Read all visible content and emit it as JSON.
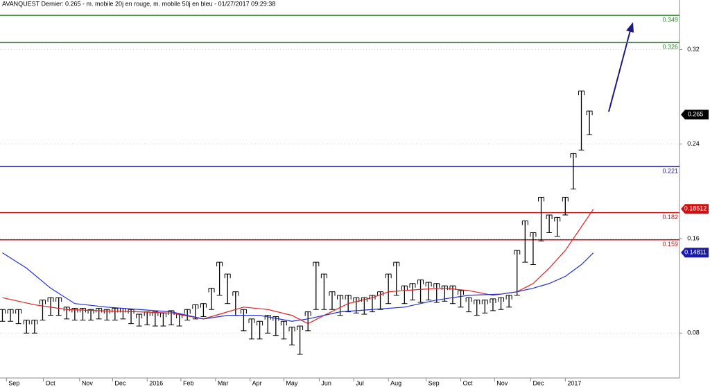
{
  "chart_data": {
    "type": "stock",
    "title": "AVANQUEST Dernier: 0.265 - m. mobile 20j en rouge, m. mobile 50j en bleu - 01/27/2017 09:29:38",
    "ylim": [
      0.042,
      0.362
    ],
    "yticks": [
      0.32,
      0.24,
      0.16,
      0.08
    ],
    "xlim": [
      -0.3,
      84.2
    ],
    "xticks": [
      {
        "value": 0.5,
        "label": "Sep"
      },
      {
        "value": 5.1,
        "label": "Oct"
      },
      {
        "value": 9.6,
        "label": "Nov"
      },
      {
        "value": 13.7,
        "label": "Dec"
      },
      {
        "value": 18,
        "label": "2016"
      },
      {
        "value": 22.2,
        "label": "Feb"
      },
      {
        "value": 26.5,
        "label": "Mar"
      },
      {
        "value": 30.8,
        "label": "Apr"
      },
      {
        "value": 35,
        "label": "May"
      },
      {
        "value": 39.4,
        "label": "Jun"
      },
      {
        "value": 43.7,
        "label": "Jul"
      },
      {
        "value": 48,
        "label": "Aug"
      },
      {
        "value": 52.7,
        "label": "Sep"
      },
      {
        "value": 57,
        "label": "Oct"
      },
      {
        "value": 61.2,
        "label": "Nov"
      },
      {
        "value": 65.7,
        "label": "Dec"
      },
      {
        "value": 70,
        "label": "2017"
      }
    ],
    "bars": {
      "color": "#000000",
      "x": [
        0,
        1,
        2,
        3,
        4,
        5,
        6,
        7,
        8,
        9,
        10,
        11,
        12,
        13,
        14,
        15,
        16,
        17,
        18,
        19,
        20,
        21,
        22,
        23,
        24,
        25,
        26,
        27,
        28,
        29,
        30,
        31,
        32,
        33,
        34,
        35,
        36,
        37,
        38,
        39,
        40,
        41,
        42,
        43,
        44,
        45,
        46,
        47,
        48,
        49,
        50,
        51,
        52,
        53,
        54,
        55,
        56,
        57,
        58,
        59,
        60,
        61,
        62,
        63,
        64,
        65,
        66,
        67,
        68,
        69,
        70,
        71,
        72,
        73
      ],
      "low": [
        0.09,
        0.09,
        0.088,
        0.08,
        0.08,
        0.091,
        0.095,
        0.095,
        0.092,
        0.091,
        0.091,
        0.091,
        0.092,
        0.091,
        0.091,
        0.092,
        0.088,
        0.086,
        0.087,
        0.086,
        0.086,
        0.087,
        0.086,
        0.091,
        0.092,
        0.094,
        0.1,
        0.112,
        0.105,
        0.095,
        0.082,
        0.075,
        0.075,
        0.08,
        0.078,
        0.075,
        0.07,
        0.062,
        0.082,
        0.1,
        0.1,
        0.1,
        0.095,
        0.098,
        0.097,
        0.096,
        0.098,
        0.1,
        0.105,
        0.112,
        0.105,
        0.108,
        0.106,
        0.108,
        0.106,
        0.107,
        0.105,
        0.102,
        0.098,
        0.095,
        0.097,
        0.099,
        0.1,
        0.102,
        0.112,
        0.14,
        0.138,
        0.158,
        0.165,
        0.162,
        0.18,
        0.202,
        0.235,
        0.248
      ],
      "high": [
        0.1,
        0.1,
        0.1,
        0.091,
        0.091,
        0.108,
        0.11,
        0.11,
        0.102,
        0.101,
        0.101,
        0.1,
        0.101,
        0.1,
        0.101,
        0.101,
        0.1,
        0.096,
        0.098,
        0.098,
        0.097,
        0.099,
        0.096,
        0.1,
        0.104,
        0.105,
        0.118,
        0.14,
        0.13,
        0.115,
        0.1,
        0.092,
        0.09,
        0.095,
        0.094,
        0.09,
        0.085,
        0.086,
        0.098,
        0.14,
        0.13,
        0.115,
        0.112,
        0.112,
        0.11,
        0.11,
        0.112,
        0.115,
        0.13,
        0.14,
        0.12,
        0.122,
        0.125,
        0.123,
        0.122,
        0.12,
        0.12,
        0.116,
        0.11,
        0.108,
        0.108,
        0.109,
        0.11,
        0.112,
        0.15,
        0.175,
        0.165,
        0.195,
        0.18,
        0.178,
        0.195,
        0.232,
        0.285,
        0.268
      ]
    },
    "moving_averages": [
      {
        "color": "#e02020",
        "x": [
          0,
          4,
          8,
          12,
          17,
          21,
          25,
          28,
          30,
          33,
          36,
          38,
          40,
          43,
          46,
          48,
          52,
          55,
          58,
          61,
          64,
          66,
          68,
          70,
          72,
          73.5
        ],
        "values": [
          0.11,
          0.104,
          0.1,
          0.099,
          0.098,
          0.097,
          0.092,
          0.098,
          0.102,
          0.1,
          0.095,
          0.088,
          0.095,
          0.105,
          0.11,
          0.115,
          0.117,
          0.118,
          0.116,
          0.112,
          0.115,
          0.122,
          0.135,
          0.15,
          0.17,
          0.185
        ]
      },
      {
        "color": "#2030d0",
        "x": [
          0,
          3,
          6,
          9,
          13,
          17,
          21,
          25,
          28,
          32,
          36,
          38,
          42,
          46,
          50,
          54,
          58,
          62,
          64,
          66,
          68,
          70,
          72,
          73.5
        ],
        "values": [
          0.148,
          0.135,
          0.118,
          0.105,
          0.102,
          0.1,
          0.098,
          0.092,
          0.095,
          0.095,
          0.09,
          0.092,
          0.098,
          0.1,
          0.102,
          0.108,
          0.112,
          0.113,
          0.115,
          0.118,
          0.122,
          0.128,
          0.138,
          0.148
        ]
      }
    ],
    "levels": [
      {
        "value": 0.349,
        "color": "#2a8a2a"
      },
      {
        "value": 0.326,
        "color": "#2a8a2a"
      },
      {
        "value": 0.221,
        "color": "#1a1aa8"
      },
      {
        "value": 0.182,
        "color": "#d01010"
      },
      {
        "value": 0.159,
        "color": "#d01010"
      }
    ],
    "price_tags": [
      {
        "value": 0.265,
        "color": "#000000"
      },
      {
        "value": 0.18512,
        "color": "#d01010"
      },
      {
        "value": 0.14811,
        "color": "#1a1aa8"
      }
    ]
  }
}
